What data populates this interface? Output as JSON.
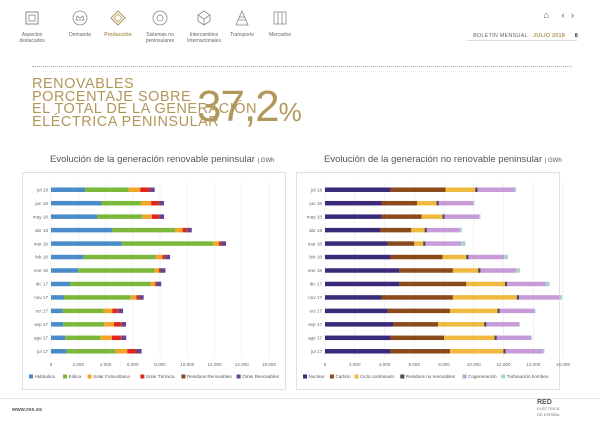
{
  "nav": {
    "items": [
      {
        "label": "Aspectos\ndestacados",
        "icon": "document-icon"
      },
      {
        "label": "Demanda",
        "icon": "crown-icon"
      },
      {
        "label": "Producción",
        "icon": "diamond-icon",
        "active": true
      },
      {
        "label": "Sistemas no\npeninsulares",
        "icon": "circle-icon"
      },
      {
        "label": "Intercambios\nInternacionales",
        "icon": "cube-icon"
      },
      {
        "label": "Transporte",
        "icon": "tower-icon"
      },
      {
        "label": "Mercados",
        "icon": "building-icon"
      }
    ]
  },
  "header": {
    "bulletin": "BOLETÍN MENSUAL",
    "separator": "·",
    "month": "JULIO 2018",
    "page": "8"
  },
  "headline": {
    "lines": [
      "RENOVABLES",
      "PORCENTAJE SOBRE",
      "EL TOTAL DE LA GENERACIÓN",
      "ELÉCTRICA PENINSULAR"
    ],
    "value": "37,2",
    "unit": "%"
  },
  "footer": {
    "url": "www.ree.es",
    "logo_main": "RED",
    "logo_sub1": "ELÉCTRICA",
    "logo_sub2": "DE ESPAÑA"
  },
  "chart_data": [
    {
      "type": "bar",
      "orientation": "horizontal",
      "stacked": true,
      "title": "Evolución de la generación renovable peninsular",
      "unit": "GWh",
      "categories": [
        "jul 18",
        "jun 18",
        "may 18",
        "abr 18",
        "mar 18",
        "feb 18",
        "ene 18",
        "dic 17",
        "nov 17",
        "oct 17",
        "sep 17",
        "ago 17",
        "jul 17"
      ],
      "xlim": [
        0,
        16000
      ],
      "xticks": [
        "0",
        "2.000",
        "4.000",
        "6.000",
        "8.000",
        "10.000",
        "12.000",
        "14.000",
        "16.000"
      ],
      "grid": true,
      "legend": "bottom",
      "series": [
        {
          "name": "Hidráulica",
          "color": "#4a8cc9",
          "values": [
            2500,
            3700,
            3400,
            4500,
            5200,
            2400,
            2000,
            1400,
            950,
            850,
            900,
            1050,
            1150
          ]
        },
        {
          "name": "Eólica",
          "color": "#7ab73a",
          "values": [
            3200,
            2900,
            3300,
            4600,
            6700,
            5300,
            5600,
            5900,
            4900,
            3000,
            3000,
            2600,
            3600
          ]
        },
        {
          "name": "Solar Fotovoltaica",
          "color": "#f2a528",
          "values": [
            850,
            750,
            700,
            560,
            430,
            480,
            330,
            330,
            420,
            650,
            720,
            820,
            850
          ]
        },
        {
          "name": "Solar Térmica",
          "color": "#e2241f",
          "values": [
            650,
            550,
            500,
            300,
            120,
            180,
            70,
            60,
            150,
            400,
            500,
            650,
            640
          ]
        },
        {
          "name": "Residuos Renovables",
          "color": "#7a4a2a",
          "values": [
            70,
            70,
            70,
            70,
            70,
            70,
            70,
            70,
            70,
            70,
            70,
            70,
            70
          ]
        },
        {
          "name": "Otras Renovables",
          "color": "#6b3f91",
          "values": [
            340,
            320,
            330,
            300,
            330,
            310,
            330,
            330,
            310,
            320,
            320,
            330,
            340
          ]
        }
      ]
    },
    {
      "type": "bar",
      "orientation": "horizontal",
      "stacked": true,
      "title": "Evolución de la generación no renovable peninsular",
      "unit": "GWh",
      "categories": [
        "jul 18",
        "jun 18",
        "may 18",
        "abr 18",
        "mar 18",
        "feb 18",
        "ene 18",
        "dic 17",
        "nov 17",
        "oct 17",
        "sep 17",
        "ago 17",
        "jul 17"
      ],
      "xlim": [
        0,
        16000
      ],
      "xticks": [
        "0",
        "2.000",
        "4.000",
        "6.000",
        "8.000",
        "10.000",
        "12.000",
        "14.000",
        "16.000"
      ],
      "grid": true,
      "legend": "bottom",
      "series": [
        {
          "name": "Nuclear",
          "color": "#3b2a7a",
          "values": [
            4400,
            3800,
            3800,
            3700,
            4200,
            4400,
            5000,
            5000,
            3800,
            4200,
            4600,
            4400,
            4400
          ]
        },
        {
          "name": "Carbón",
          "color": "#8b4a1c",
          "values": [
            3700,
            2400,
            2700,
            2100,
            1800,
            3500,
            3600,
            4500,
            4800,
            4200,
            3000,
            3600,
            4000
          ]
        },
        {
          "name": "Ciclo combinado",
          "color": "#f0b940",
          "values": [
            2000,
            1300,
            1400,
            900,
            600,
            1600,
            1700,
            2600,
            4300,
            3200,
            3100,
            3400,
            3600
          ]
        },
        {
          "name": "Residuos no renovables",
          "color": "#4a4a4a",
          "values": [
            150,
            150,
            150,
            150,
            150,
            150,
            150,
            150,
            150,
            150,
            150,
            150,
            150
          ]
        },
        {
          "name": "Cogeneración",
          "color": "#c79ad9",
          "values": [
            2500,
            2300,
            2300,
            2200,
            2400,
            2400,
            2400,
            2600,
            2700,
            2300,
            2200,
            2300,
            2500
          ]
        },
        {
          "name": "Turbinación bombeo",
          "color": "#a7d3cf",
          "values": [
            100,
            100,
            100,
            150,
            300,
            250,
            250,
            250,
            200,
            100,
            50,
            50,
            100
          ]
        }
      ]
    }
  ]
}
